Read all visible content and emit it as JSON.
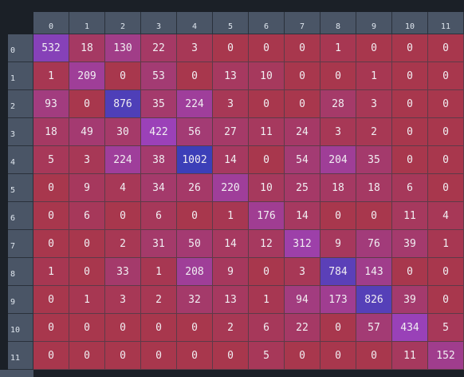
{
  "chart_data": {
    "type": "heatmap",
    "title": "",
    "xlabel": "",
    "ylabel": "",
    "x_labels": [
      "0",
      "1",
      "2",
      "3",
      "4",
      "5",
      "6",
      "7",
      "8",
      "9",
      "10",
      "11"
    ],
    "y_labels": [
      "0",
      "1",
      "2",
      "3",
      "4",
      "5",
      "6",
      "7",
      "8",
      "9",
      "10",
      "11"
    ],
    "values": [
      [
        532,
        18,
        130,
        22,
        3,
        0,
        0,
        0,
        1,
        0,
        0,
        0
      ],
      [
        1,
        209,
        0,
        53,
        0,
        13,
        10,
        0,
        0,
        1,
        0,
        0
      ],
      [
        93,
        0,
        876,
        35,
        224,
        3,
        0,
        0,
        28,
        3,
        0,
        0
      ],
      [
        18,
        49,
        30,
        422,
        56,
        27,
        11,
        24,
        3,
        2,
        0,
        0
      ],
      [
        5,
        3,
        224,
        38,
        1002,
        14,
        0,
        54,
        204,
        35,
        0,
        0
      ],
      [
        0,
        9,
        4,
        34,
        26,
        220,
        10,
        25,
        18,
        18,
        6,
        0
      ],
      [
        0,
        6,
        0,
        6,
        0,
        1,
        176,
        14,
        0,
        0,
        11,
        4
      ],
      [
        0,
        0,
        2,
        31,
        50,
        14,
        12,
        312,
        9,
        76,
        39,
        1
      ],
      [
        1,
        0,
        33,
        1,
        208,
        9,
        0,
        3,
        784,
        143,
        0,
        0
      ],
      [
        0,
        1,
        3,
        2,
        32,
        13,
        1,
        94,
        173,
        826,
        39,
        0
      ],
      [
        0,
        0,
        0,
        0,
        0,
        2,
        6,
        22,
        0,
        57,
        434,
        5
      ],
      [
        0,
        0,
        0,
        0,
        0,
        0,
        5,
        0,
        0,
        0,
        11,
        152
      ]
    ],
    "color_scale": {
      "low": "#a8374d",
      "mid": "#9b41b8",
      "high": "#3c3fb8"
    },
    "text_color": "#f1eef2",
    "header_color": "#4a5566",
    "background": "#1b2027"
  }
}
